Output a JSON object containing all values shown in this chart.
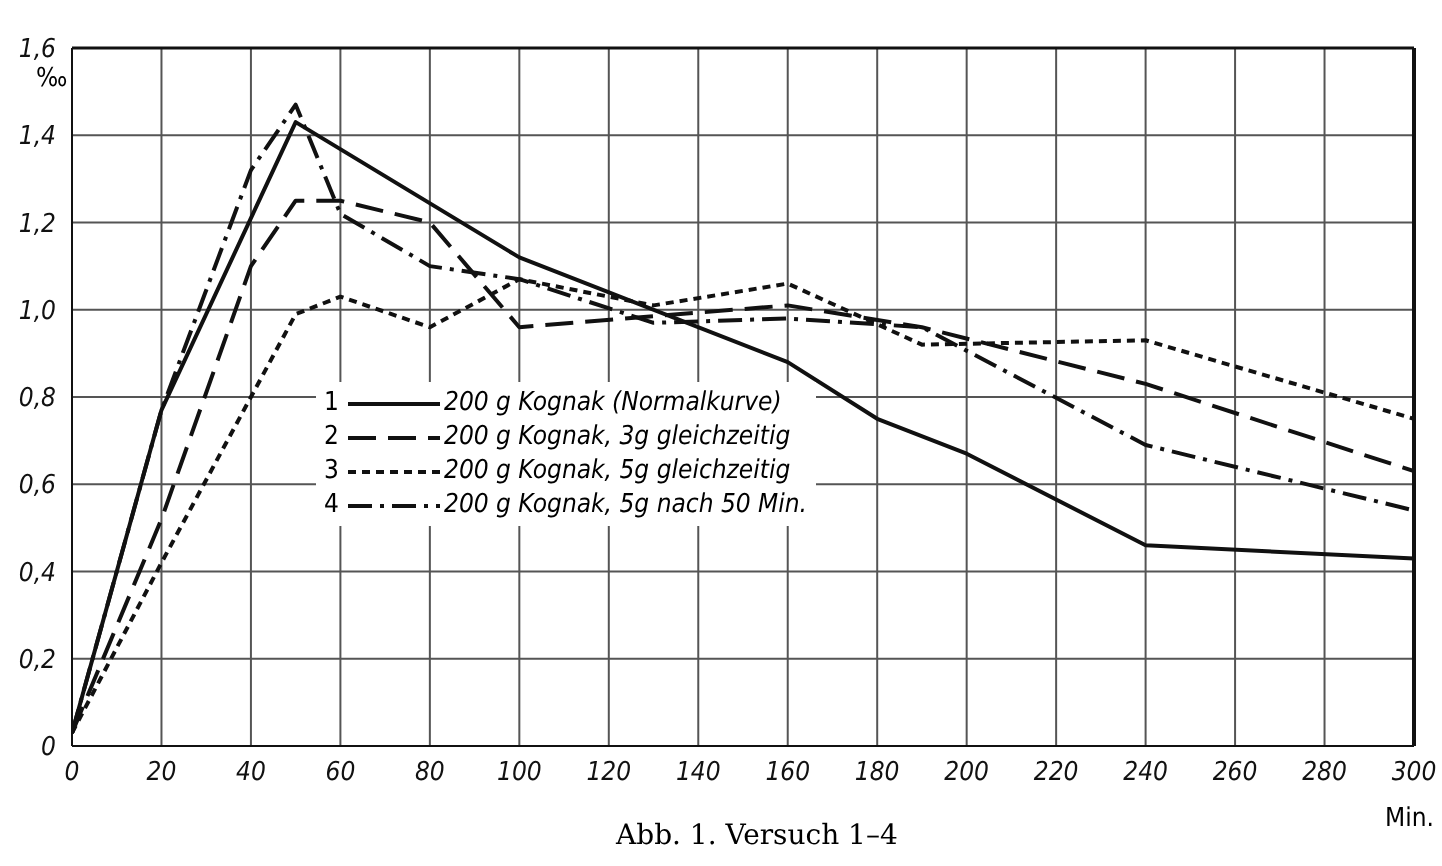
{
  "chart_data": {
    "type": "line",
    "ylabel": "‰",
    "xlabel": "Min.",
    "annotations": [
      "Abb. 1. Versuch 1–4",
      "1",
      "2",
      "3",
      "4"
    ],
    "xlim": [
      0,
      300
    ],
    "xticks": [
      0,
      20,
      40,
      60,
      80,
      100,
      120,
      140,
      160,
      180,
      200,
      220,
      240,
      260,
      280,
      300
    ],
    "ylim": [
      0,
      1.6
    ],
    "yticks": [
      0,
      {
        "value": 0.2,
        "label": "0,2"
      },
      {
        "value": 0.4,
        "label": "0,4"
      },
      {
        "value": 0.6,
        "label": "0,6"
      },
      {
        "value": 0.8,
        "label": "0,8"
      },
      {
        "value": 1.0,
        "label": "1,0"
      },
      {
        "value": 1.2,
        "label": "1,2"
      },
      {
        "value": 1.4,
        "label": "1,4"
      },
      {
        "value": 1.6,
        "label": "1,6"
      }
    ],
    "grid": true,
    "legend": "left",
    "marker": "none",
    "series": [
      {
        "name": "200 g Kognak (Normalkurve)",
        "color": "#111111",
        "line_style": "solid",
        "x": [
          0,
          20,
          50,
          100,
          160,
          180,
          200,
          240,
          300
        ],
        "values": [
          0.03,
          0.77,
          1.43,
          1.12,
          0.88,
          0.75,
          0.67,
          0.46,
          0.43
        ]
      },
      {
        "name": "200 g Kognak, 3g gleichzeitig",
        "color": "#111111",
        "line_style": "dashed",
        "x": [
          0,
          20,
          40,
          50,
          60,
          80,
          100,
          160,
          190,
          240,
          300
        ],
        "values": [
          0.03,
          0.52,
          1.1,
          1.25,
          1.25,
          1.2,
          0.96,
          1.01,
          0.96,
          0.83,
          0.63
        ]
      },
      {
        "name": "200 g Kognak, 5g gleichzeitig",
        "color": "#111111",
        "line_style": "dotted",
        "x": [
          0,
          20,
          40,
          50,
          60,
          80,
          100,
          130,
          160,
          190,
          240,
          300
        ],
        "values": [
          0.03,
          0.42,
          0.8,
          0.99,
          1.03,
          0.96,
          1.07,
          1.01,
          1.06,
          0.92,
          0.93,
          0.75
        ]
      },
      {
        "name": "200 g Kognak, 5g nach 50 Min.",
        "color": "#111111",
        "line_style": "dashdot",
        "x": [
          0,
          20,
          40,
          50,
          60,
          80,
          100,
          130,
          160,
          190,
          240,
          300
        ],
        "values": [
          0.03,
          0.77,
          1.32,
          1.47,
          1.22,
          1.1,
          1.07,
          0.97,
          0.98,
          0.96,
          0.69,
          0.54
        ]
      }
    ]
  }
}
